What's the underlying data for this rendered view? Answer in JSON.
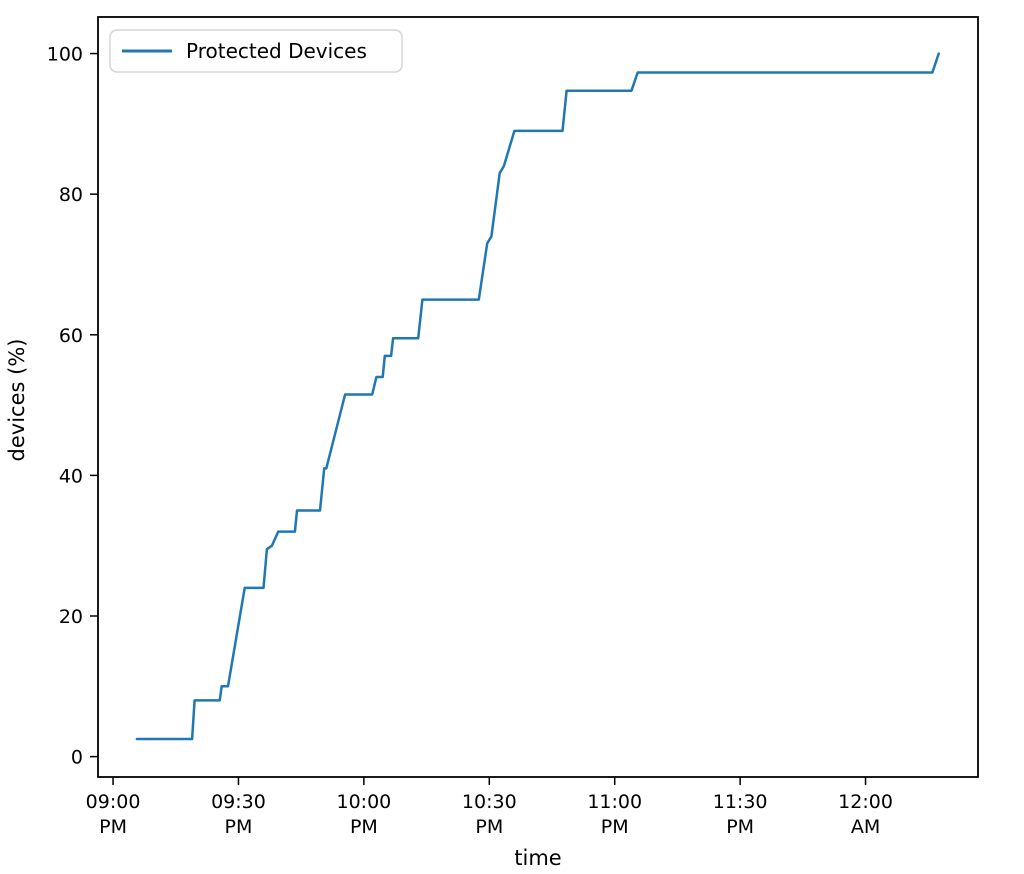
{
  "figure": {
    "background": "#ffffff",
    "frame_color": "#000000"
  },
  "legend": {
    "label": "Protected Devices",
    "swatch_color": "#1f77b4",
    "border_color": "#d5d5d5",
    "background": "#ffffff"
  },
  "chart_data": {
    "type": "line",
    "title": "",
    "xlabel": "time",
    "ylabel": "devices (%)",
    "grid": false,
    "legend_position": "upper left",
    "x_unit": "minutes after 09:00 PM",
    "xlim": [
      -3.6,
      206.9
    ],
    "ylim": [
      -2.9,
      105.2
    ],
    "x_ticks": [
      {
        "t": 0,
        "line1": "09:00",
        "line2": "PM"
      },
      {
        "t": 30,
        "line1": "09:30",
        "line2": "PM"
      },
      {
        "t": 60,
        "line1": "10:00",
        "line2": "PM"
      },
      {
        "t": 90,
        "line1": "10:30",
        "line2": "PM"
      },
      {
        "t": 120,
        "line1": "11:00",
        "line2": "PM"
      },
      {
        "t": 150,
        "line1": "11:30",
        "line2": "PM"
      },
      {
        "t": 180,
        "line1": "12:00",
        "line2": "AM"
      }
    ],
    "y_ticks": [
      0,
      20,
      40,
      60,
      80,
      100
    ],
    "series": [
      {
        "name": "Protected Devices",
        "color": "#1f77b4",
        "line_width": 2.5,
        "points": [
          [
            5.7,
            2.5
          ],
          [
            18.9,
            2.5
          ],
          [
            19.5,
            8
          ],
          [
            25.5,
            8
          ],
          [
            26,
            10
          ],
          [
            27.5,
            10
          ],
          [
            31.5,
            24
          ],
          [
            36,
            24
          ],
          [
            36.8,
            29.5
          ],
          [
            38,
            30
          ],
          [
            39.5,
            32
          ],
          [
            43.5,
            32
          ],
          [
            44,
            35
          ],
          [
            49.5,
            35
          ],
          [
            50.5,
            41
          ],
          [
            51,
            41
          ],
          [
            55.5,
            51.5
          ],
          [
            62,
            51.5
          ],
          [
            63,
            54
          ],
          [
            64.5,
            54
          ],
          [
            65,
            57
          ],
          [
            66.5,
            57
          ],
          [
            67,
            59.5
          ],
          [
            73,
            59.5
          ],
          [
            74,
            65
          ],
          [
            87.5,
            65
          ],
          [
            89.5,
            73
          ],
          [
            90.5,
            74
          ],
          [
            92.5,
            83
          ],
          [
            93.5,
            84
          ],
          [
            96,
            89
          ],
          [
            107.5,
            89
          ],
          [
            108.5,
            94.7
          ],
          [
            124,
            94.7
          ],
          [
            125.5,
            97.3
          ],
          [
            196,
            97.3
          ],
          [
            197.5,
            100
          ]
        ]
      }
    ]
  }
}
